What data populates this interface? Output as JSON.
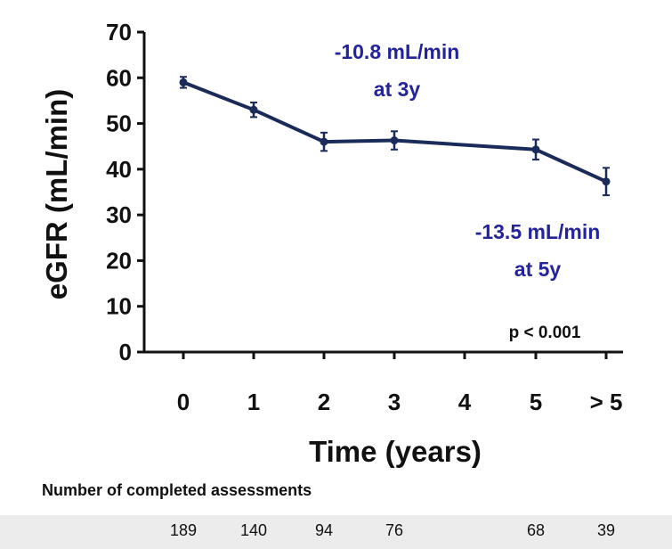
{
  "chart_data": {
    "type": "line",
    "ylabel": "eGFR (mL/min)",
    "xlabel": "Time (years)",
    "ylim": [
      0,
      70
    ],
    "yticks": [
      0,
      10,
      20,
      30,
      40,
      50,
      60,
      70
    ],
    "categories": [
      "0",
      "1",
      "2",
      "3",
      "4",
      "5",
      "> 5"
    ],
    "series": [
      {
        "x": [
          "0",
          "1",
          "2",
          "3",
          "5",
          "> 5"
        ],
        "values": [
          59,
          53,
          46,
          46.3,
          44.3,
          37.3
        ],
        "error": [
          1.2,
          1.6,
          2.0,
          2.0,
          2.2,
          3.0
        ],
        "color": "#1a2b5a"
      }
    ],
    "annotations": [
      {
        "lines": [
          "-10.8 mL/min",
          "at 3y"
        ],
        "color": "#23239c"
      },
      {
        "lines": [
          "-13.5 mL/min",
          "at 5y"
        ],
        "color": "#23239c"
      },
      {
        "lines": [
          "p < 0.001"
        ],
        "color": "#111111"
      }
    ],
    "assessments": {
      "title": "Number of completed assessments",
      "counts": [
        {
          "x": "0",
          "value": "189"
        },
        {
          "x": "1",
          "value": "140"
        },
        {
          "x": "2",
          "value": "94"
        },
        {
          "x": "3",
          "value": "76"
        },
        {
          "x": "5",
          "value": "68"
        },
        {
          "x": "> 5",
          "value": "39"
        }
      ]
    },
    "grid": false
  }
}
